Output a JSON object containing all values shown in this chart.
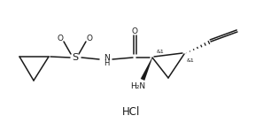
{
  "background_color": "#ffffff",
  "line_color": "#1a1a1a",
  "text_color": "#1a1a1a",
  "hcl_text": "HCl",
  "label_S": "S",
  "label_O1": "O",
  "label_O2": "O",
  "label_NH": "N\nH",
  "label_O3": "O",
  "label_NH2": "H₂N",
  "label_amp1": "&1",
  "label_amp2": "&1",
  "font_size_atom": 6.5,
  "font_size_hcl": 8.5,
  "font_size_stereo": 4.5,
  "font_size_S": 8.0
}
